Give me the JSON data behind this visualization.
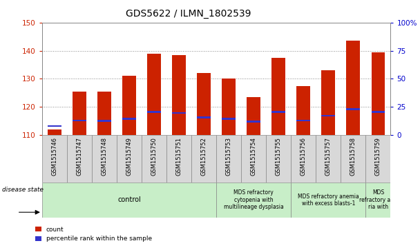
{
  "title": "GDS5622 / ILMN_1802539",
  "samples": [
    "GSM1515746",
    "GSM1515747",
    "GSM1515748",
    "GSM1515749",
    "GSM1515750",
    "GSM1515751",
    "GSM1515752",
    "GSM1515753",
    "GSM1515754",
    "GSM1515755",
    "GSM1515756",
    "GSM1515757",
    "GSM1515758",
    "GSM1515759"
  ],
  "counts": [
    112,
    125.5,
    125.5,
    131,
    139,
    138.5,
    132,
    130,
    123.5,
    137.5,
    127.5,
    133,
    143.5,
    139.5
  ],
  "percentile_values": [
    113.2,
    115.2,
    115.0,
    115.8,
    118.2,
    117.8,
    116.2,
    115.8,
    114.8,
    118.2,
    115.2,
    116.8,
    119.2,
    118.2
  ],
  "ylim_left": [
    110,
    150
  ],
  "ylim_right": [
    0,
    100
  ],
  "yticks_left": [
    110,
    120,
    130,
    140,
    150
  ],
  "yticks_right": [
    0,
    25,
    50,
    75,
    100
  ],
  "bar_color": "#cc2200",
  "percentile_color": "#3333cc",
  "bar_width": 0.55,
  "group_starts": [
    0,
    7,
    10,
    13
  ],
  "group_ends": [
    7,
    10,
    13,
    14
  ],
  "group_labels": [
    "control",
    "MDS refractory\ncytopenia with\nmultilineage dysplasia",
    "MDS refractory anemia\nwith excess blasts-1",
    "MDS\nrefractory ane\nria with"
  ],
  "group_color": "#c8eec8",
  "legend_count_label": "count",
  "legend_percentile_label": "percentile rank within the sample",
  "disease_state_label": "disease state",
  "background_color": "#ffffff",
  "grid_color": "#888888",
  "title_fontsize": 10,
  "tick_label_color_left": "#cc2200",
  "tick_label_color_right": "#0000cc",
  "tick_bg_color": "#d8d8d8",
  "spine_color": "#888888"
}
